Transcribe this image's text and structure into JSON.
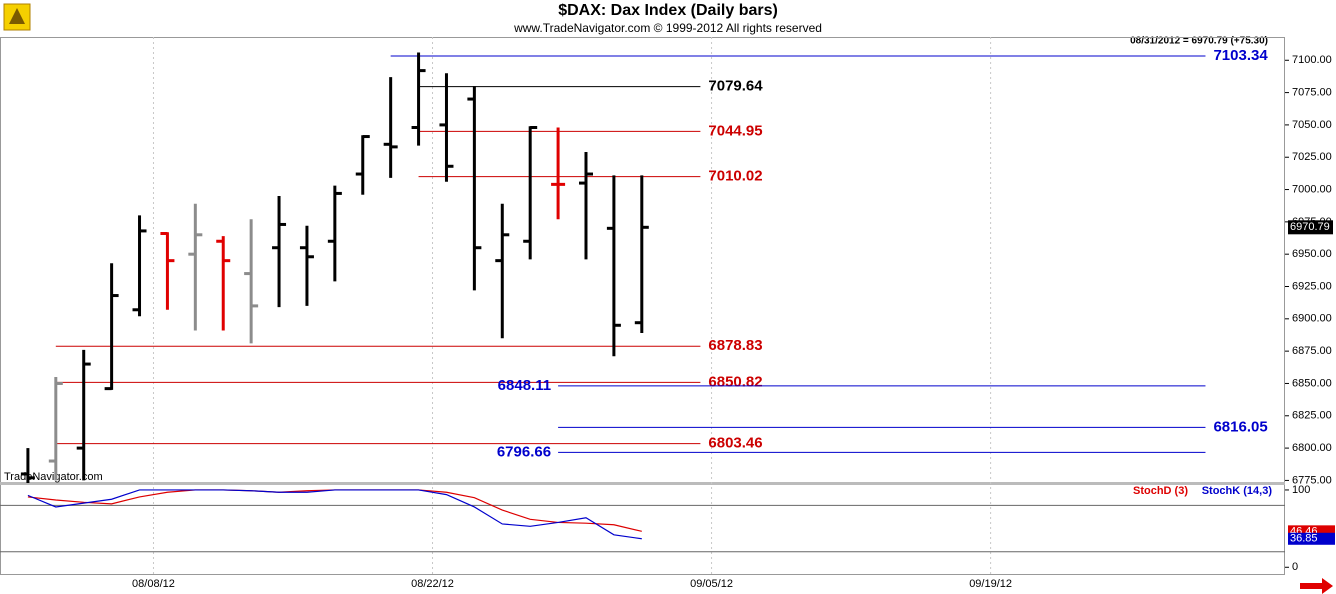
{
  "chart_data": [
    {
      "type": "ohlc",
      "title": "$DAX:  Dax Index  (Daily bars)",
      "subtitle": "www.TradeNavigator.com © 1999-2012 All rights reserved",
      "status": "08/31/2012 = 6970.79 (+75.30)",
      "watermark": "TradeNavigator.com",
      "last_value": 6970.79,
      "x": [
        0,
        1,
        2,
        3,
        4,
        5,
        6,
        7,
        8,
        9,
        10,
        11,
        12,
        13,
        14,
        15,
        16,
        17,
        18,
        19,
        20,
        21,
        22
      ],
      "open": [
        6780,
        6790,
        6800,
        6846,
        6907,
        6966,
        6950,
        6960,
        6935,
        6955,
        6955,
        6960,
        7012,
        7035,
        7048,
        7050,
        7070,
        6945,
        6960,
        7004,
        7005,
        6970,
        6897
      ],
      "high": [
        6800,
        6855,
        6876,
        6943,
        6980,
        6967,
        6989,
        6964,
        6977,
        6995,
        6972,
        7003,
        7042,
        7087,
        7106,
        7090,
        7080,
        6989,
        7049,
        7048,
        7029,
        7011,
        7011
      ],
      "low": [
        6773,
        6775,
        6775,
        6845,
        6902,
        6907,
        6891,
        6891,
        6881,
        6909,
        6910,
        6929,
        6996,
        7009,
        7034,
        7006,
        6922,
        6885,
        6946,
        6977,
        6946,
        6871,
        6889
      ],
      "close": [
        6777,
        6850,
        6865,
        6918,
        6968,
        6945,
        6965,
        6945,
        6910,
        6973,
        6948,
        6997,
        7041,
        7033,
        7092,
        7018,
        6955,
        6965,
        7048,
        7004,
        7012,
        6895,
        6970.79
      ],
      "colors": [
        "#000000",
        "#8c8c8c",
        "#000000",
        "#000000",
        "#000000",
        "#e00000",
        "#8c8c8c",
        "#e00000",
        "#8c8c8c",
        "#000000",
        "#000000",
        "#000000",
        "#000000",
        "#000000",
        "#000000",
        "#000000",
        "#000000",
        "#000000",
        "#000000",
        "#e00000",
        "#000000",
        "#000000",
        "#000000"
      ],
      "levels": [
        {
          "value": 7103.34,
          "color": "#0000cc",
          "from": 13,
          "to": 42.2,
          "label_side": "right"
        },
        {
          "value": 7079.64,
          "color": "#000000",
          "from": 14,
          "to": 24.1,
          "label_side": "right"
        },
        {
          "value": 7044.95,
          "color": "#cc0000",
          "from": 14,
          "to": 24.1,
          "label_side": "right"
        },
        {
          "value": 7010.02,
          "color": "#cc0000",
          "from": 14,
          "to": 24.1,
          "label_side": "right"
        },
        {
          "value": 6878.83,
          "color": "#cc0000",
          "from": 1,
          "to": 24.1,
          "label_side": "right"
        },
        {
          "value": 6850.82,
          "color": "#cc0000",
          "from": 1,
          "to": 24.1,
          "label_side": "right"
        },
        {
          "value": 6848.11,
          "color": "#0000cc",
          "from": 19,
          "to": 42.2,
          "label_side": "left"
        },
        {
          "value": 6816.05,
          "color": "#0000cc",
          "from": 19,
          "to": 42.2,
          "label_side": "right"
        },
        {
          "value": 6803.46,
          "color": "#cc0000",
          "from": 1,
          "to": 24.1,
          "label_side": "right"
        },
        {
          "value": 6796.66,
          "color": "#0000cc",
          "from": 19,
          "to": 42.2,
          "label_side": "left"
        }
      ],
      "xlim": [
        -1,
        45.05
      ],
      "xticks": [
        {
          "value": 4.5,
          "label": "08/08/12"
        },
        {
          "value": 14.5,
          "label": "08/22/12"
        },
        {
          "value": 24.5,
          "label": "09/05/12"
        },
        {
          "value": 34.5,
          "label": "09/19/12"
        }
      ],
      "ylim": [
        6773,
        7118
      ],
      "yticks": [
        {
          "value": 6775,
          "label": "6775.00"
        },
        {
          "value": 6800,
          "label": "6800.00"
        },
        {
          "value": 6825,
          "label": "6825.00"
        },
        {
          "value": 6850,
          "label": "6850.00"
        },
        {
          "value": 6875,
          "label": "6875.00"
        },
        {
          "value": 6900,
          "label": "6900.00"
        },
        {
          "value": 6925,
          "label": "6925.00"
        },
        {
          "value": 6950,
          "label": "6950.00"
        },
        {
          "value": 6975,
          "label": "6975.00"
        },
        {
          "value": 7000,
          "label": "7000.00"
        },
        {
          "value": 7025,
          "label": "7025.00"
        },
        {
          "value": 7050,
          "label": "7050.00"
        },
        {
          "value": 7075,
          "label": "7075.00"
        },
        {
          "value": 7100,
          "label": "7100.00"
        }
      ],
      "grid": true
    },
    {
      "type": "line",
      "x": [
        0,
        1,
        2,
        3,
        4,
        5,
        6,
        7,
        8,
        9,
        10,
        11,
        12,
        13,
        14,
        15,
        16,
        17,
        18,
        19,
        20,
        21,
        22
      ],
      "series": [
        {
          "name": "StochD (3)",
          "color": "#dd0000",
          "values": [
            91,
            87,
            84,
            82,
            91,
            97,
            100,
            100,
            99,
            97,
            99,
            100,
            100,
            100,
            100,
            97,
            90,
            74,
            62,
            58,
            57,
            55,
            46.46
          ]
        },
        {
          "name": "StochK (14,3)",
          "color": "#0000cc",
          "values": [
            93,
            78,
            83,
            88,
            100,
            100,
            100,
            100,
            99,
            97,
            97,
            100,
            100,
            100,
            100,
            94,
            78,
            56,
            53,
            58,
            64,
            42,
            36.85
          ]
        }
      ],
      "levels": [
        80,
        20
      ],
      "xlim": [
        -1,
        45.05
      ],
      "ylim": [
        -10,
        109
      ],
      "yticks": [
        0,
        100
      ]
    }
  ]
}
